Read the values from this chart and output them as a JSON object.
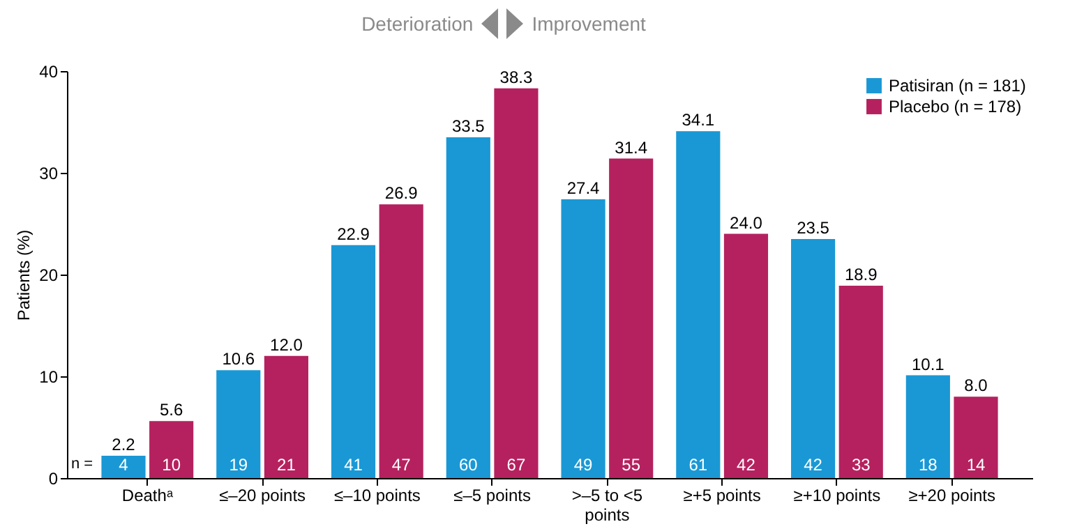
{
  "chart_data": {
    "type": "bar",
    "ylabel": "Patients (%)",
    "categories": [
      "Deathᵃ",
      "≤–20 points",
      "≤–10 points",
      "≤–5 points",
      ">–5 to <5 points",
      "≥+5 points",
      "≥+10 points",
      "≥+20 points"
    ],
    "series": [
      {
        "name": "Patisiran (n = 181)",
        "color": "#1a98d5",
        "values": [
          2.2,
          10.6,
          22.9,
          33.5,
          27.4,
          34.1,
          23.5,
          10.1
        ],
        "value_labels": [
          "2.2",
          "10.6",
          "22.9",
          "33.5",
          "27.4",
          "34.1",
          "23.5",
          "10.1"
        ]
      },
      {
        "name": "Placebo (n = 178)",
        "color": "#b5215e",
        "values": [
          5.6,
          12.0,
          26.9,
          38.3,
          31.4,
          24.0,
          18.9,
          8.0
        ],
        "value_labels": [
          "5.6",
          "12.0",
          "26.9",
          "38.3",
          "31.4",
          "24.0",
          "18.9",
          "8.0"
        ]
      }
    ],
    "ylim": [
      0,
      40
    ],
    "yticks": [
      0,
      10,
      20,
      30,
      40
    ],
    "grid": false,
    "legend": "top right",
    "annotations": [
      "Deterioration",
      "Improvement",
      {
        "text": "4",
        "x": "Deathᵃ",
        "y": 1.3
      },
      {
        "text": "10",
        "x": "Deathᵃ",
        "y": 1.3
      },
      {
        "text": "19",
        "x": "≤–20 points",
        "y": 1.3
      },
      {
        "text": "21",
        "x": "≤–20 points",
        "y": 1.3
      },
      {
        "text": "41",
        "x": "≤–10 points",
        "y": 1.3
      },
      {
        "text": "47",
        "x": "≤–10 points",
        "y": 1.3
      },
      {
        "text": "60",
        "x": "≤–5 points",
        "y": 1.3
      },
      {
        "text": "67",
        "x": "≤–5 points",
        "y": 1.3
      },
      {
        "text": "49",
        "x": ">–5 to <5 points",
        "y": 1.3
      },
      {
        "text": "55",
        "x": ">–5 to <5 points",
        "y": 1.3
      },
      {
        "text": "61",
        "x": "≥+5 points",
        "y": 1.3
      },
      {
        "text": "42",
        "x": "≥+5 points",
        "y": 1.3
      },
      {
        "text": "42",
        "x": "≥+10 points",
        "y": 1.3
      },
      {
        "text": "33",
        "x": "≥+10 points",
        "y": 1.3
      },
      {
        "text": "18",
        "x": "≥+20 points",
        "y": 1.3
      },
      {
        "text": "14",
        "x": "≥+20 points",
        "y": 1.3
      },
      "n ="
    ]
  }
}
